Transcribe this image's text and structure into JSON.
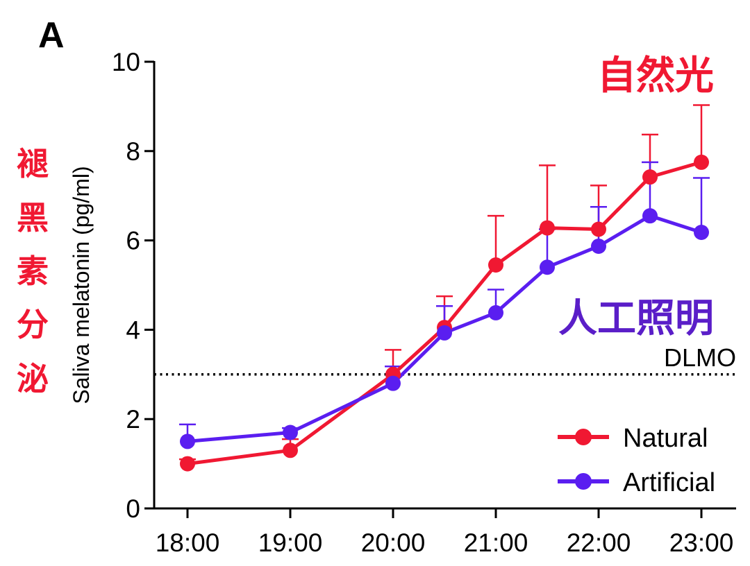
{
  "panel_label": "A",
  "annotations": {
    "natural_cn": "自然光",
    "artificial_cn": "人工照明",
    "side_title_cn": [
      "褪",
      "黑",
      "素",
      "分",
      "泌"
    ],
    "dlmo_label": "DLMO"
  },
  "colors": {
    "natural": "#f01832",
    "artificial": "#5a1ef0",
    "annotation_red": "#f01832",
    "annotation_purple": "#5a1ec8",
    "axis": "#000000"
  },
  "chart_data": {
    "type": "line",
    "ylabel": "Saliva melatonin (pg/ml)",
    "xlabel": "",
    "ylim": [
      0,
      10
    ],
    "yticks": [
      0,
      2,
      4,
      6,
      8,
      10
    ],
    "xticks": [
      "18:00",
      "19:00",
      "20:00",
      "21:00",
      "22:00",
      "23:00"
    ],
    "x_hours": [
      18,
      19,
      20,
      20.5,
      21,
      21.5,
      22,
      22.5,
      23
    ],
    "threshold": {
      "label": "DLMO",
      "value": 3.0,
      "style": "dotted"
    },
    "legend_position": "bottom-right",
    "grid": false,
    "series": [
      {
        "name": "Natural",
        "color": "#f01832",
        "values": [
          1.0,
          1.3,
          3.0,
          4.05,
          5.45,
          6.28,
          6.25,
          7.42,
          7.75
        ],
        "error": [
          0.1,
          0.25,
          0.55,
          0.7,
          1.1,
          1.4,
          0.98,
          0.95,
          1.28
        ]
      },
      {
        "name": "Artificial",
        "color": "#5a1ef0",
        "values": [
          1.5,
          1.7,
          2.8,
          3.93,
          4.38,
          5.4,
          5.87,
          6.55,
          6.18
        ],
        "error": [
          0.38,
          0.1,
          0.38,
          0.6,
          0.52,
          0.85,
          0.88,
          1.2,
          1.22
        ]
      }
    ]
  }
}
